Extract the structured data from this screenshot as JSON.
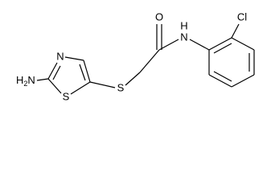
{
  "atoms": {
    "amine": [
      "H",
      "2",
      "N"
    ],
    "ring_n": "N",
    "ring_s": "S",
    "thioether_s": "S",
    "oxygen": "O",
    "amide_n": "N",
    "amide_h": "H",
    "chlorine": "Cl"
  }
}
